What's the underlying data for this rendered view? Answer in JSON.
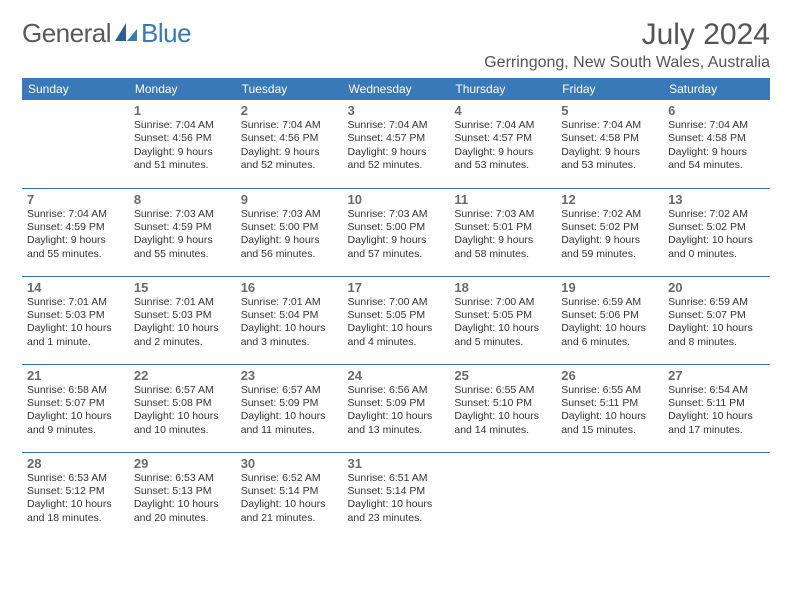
{
  "logo": {
    "general": "General",
    "blue": "Blue"
  },
  "colors": {
    "accent": "#3a79b7",
    "headerText": "#ffffff",
    "bodyText": "#333333",
    "dayNum": "#6a6a6a",
    "titleText": "#555555",
    "background": "#ffffff"
  },
  "title": "July 2024",
  "location": "Gerringong, New South Wales, Australia",
  "dayHeaders": [
    "Sunday",
    "Monday",
    "Tuesday",
    "Wednesday",
    "Thursday",
    "Friday",
    "Saturday"
  ],
  "weeks": [
    [
      null,
      {
        "d": "1",
        "sr": "Sunrise: 7:04 AM",
        "ss": "Sunset: 4:56 PM",
        "dl1": "Daylight: 9 hours",
        "dl2": "and 51 minutes."
      },
      {
        "d": "2",
        "sr": "Sunrise: 7:04 AM",
        "ss": "Sunset: 4:56 PM",
        "dl1": "Daylight: 9 hours",
        "dl2": "and 52 minutes."
      },
      {
        "d": "3",
        "sr": "Sunrise: 7:04 AM",
        "ss": "Sunset: 4:57 PM",
        "dl1": "Daylight: 9 hours",
        "dl2": "and 52 minutes."
      },
      {
        "d": "4",
        "sr": "Sunrise: 7:04 AM",
        "ss": "Sunset: 4:57 PM",
        "dl1": "Daylight: 9 hours",
        "dl2": "and 53 minutes."
      },
      {
        "d": "5",
        "sr": "Sunrise: 7:04 AM",
        "ss": "Sunset: 4:58 PM",
        "dl1": "Daylight: 9 hours",
        "dl2": "and 53 minutes."
      },
      {
        "d": "6",
        "sr": "Sunrise: 7:04 AM",
        "ss": "Sunset: 4:58 PM",
        "dl1": "Daylight: 9 hours",
        "dl2": "and 54 minutes."
      }
    ],
    [
      {
        "d": "7",
        "sr": "Sunrise: 7:04 AM",
        "ss": "Sunset: 4:59 PM",
        "dl1": "Daylight: 9 hours",
        "dl2": "and 55 minutes."
      },
      {
        "d": "8",
        "sr": "Sunrise: 7:03 AM",
        "ss": "Sunset: 4:59 PM",
        "dl1": "Daylight: 9 hours",
        "dl2": "and 55 minutes."
      },
      {
        "d": "9",
        "sr": "Sunrise: 7:03 AM",
        "ss": "Sunset: 5:00 PM",
        "dl1": "Daylight: 9 hours",
        "dl2": "and 56 minutes."
      },
      {
        "d": "10",
        "sr": "Sunrise: 7:03 AM",
        "ss": "Sunset: 5:00 PM",
        "dl1": "Daylight: 9 hours",
        "dl2": "and 57 minutes."
      },
      {
        "d": "11",
        "sr": "Sunrise: 7:03 AM",
        "ss": "Sunset: 5:01 PM",
        "dl1": "Daylight: 9 hours",
        "dl2": "and 58 minutes."
      },
      {
        "d": "12",
        "sr": "Sunrise: 7:02 AM",
        "ss": "Sunset: 5:02 PM",
        "dl1": "Daylight: 9 hours",
        "dl2": "and 59 minutes."
      },
      {
        "d": "13",
        "sr": "Sunrise: 7:02 AM",
        "ss": "Sunset: 5:02 PM",
        "dl1": "Daylight: 10 hours",
        "dl2": "and 0 minutes."
      }
    ],
    [
      {
        "d": "14",
        "sr": "Sunrise: 7:01 AM",
        "ss": "Sunset: 5:03 PM",
        "dl1": "Daylight: 10 hours",
        "dl2": "and 1 minute."
      },
      {
        "d": "15",
        "sr": "Sunrise: 7:01 AM",
        "ss": "Sunset: 5:03 PM",
        "dl1": "Daylight: 10 hours",
        "dl2": "and 2 minutes."
      },
      {
        "d": "16",
        "sr": "Sunrise: 7:01 AM",
        "ss": "Sunset: 5:04 PM",
        "dl1": "Daylight: 10 hours",
        "dl2": "and 3 minutes."
      },
      {
        "d": "17",
        "sr": "Sunrise: 7:00 AM",
        "ss": "Sunset: 5:05 PM",
        "dl1": "Daylight: 10 hours",
        "dl2": "and 4 minutes."
      },
      {
        "d": "18",
        "sr": "Sunrise: 7:00 AM",
        "ss": "Sunset: 5:05 PM",
        "dl1": "Daylight: 10 hours",
        "dl2": "and 5 minutes."
      },
      {
        "d": "19",
        "sr": "Sunrise: 6:59 AM",
        "ss": "Sunset: 5:06 PM",
        "dl1": "Daylight: 10 hours",
        "dl2": "and 6 minutes."
      },
      {
        "d": "20",
        "sr": "Sunrise: 6:59 AM",
        "ss": "Sunset: 5:07 PM",
        "dl1": "Daylight: 10 hours",
        "dl2": "and 8 minutes."
      }
    ],
    [
      {
        "d": "21",
        "sr": "Sunrise: 6:58 AM",
        "ss": "Sunset: 5:07 PM",
        "dl1": "Daylight: 10 hours",
        "dl2": "and 9 minutes."
      },
      {
        "d": "22",
        "sr": "Sunrise: 6:57 AM",
        "ss": "Sunset: 5:08 PM",
        "dl1": "Daylight: 10 hours",
        "dl2": "and 10 minutes."
      },
      {
        "d": "23",
        "sr": "Sunrise: 6:57 AM",
        "ss": "Sunset: 5:09 PM",
        "dl1": "Daylight: 10 hours",
        "dl2": "and 11 minutes."
      },
      {
        "d": "24",
        "sr": "Sunrise: 6:56 AM",
        "ss": "Sunset: 5:09 PM",
        "dl1": "Daylight: 10 hours",
        "dl2": "and 13 minutes."
      },
      {
        "d": "25",
        "sr": "Sunrise: 6:55 AM",
        "ss": "Sunset: 5:10 PM",
        "dl1": "Daylight: 10 hours",
        "dl2": "and 14 minutes."
      },
      {
        "d": "26",
        "sr": "Sunrise: 6:55 AM",
        "ss": "Sunset: 5:11 PM",
        "dl1": "Daylight: 10 hours",
        "dl2": "and 15 minutes."
      },
      {
        "d": "27",
        "sr": "Sunrise: 6:54 AM",
        "ss": "Sunset: 5:11 PM",
        "dl1": "Daylight: 10 hours",
        "dl2": "and 17 minutes."
      }
    ],
    [
      {
        "d": "28",
        "sr": "Sunrise: 6:53 AM",
        "ss": "Sunset: 5:12 PM",
        "dl1": "Daylight: 10 hours",
        "dl2": "and 18 minutes."
      },
      {
        "d": "29",
        "sr": "Sunrise: 6:53 AM",
        "ss": "Sunset: 5:13 PM",
        "dl1": "Daylight: 10 hours",
        "dl2": "and 20 minutes."
      },
      {
        "d": "30",
        "sr": "Sunrise: 6:52 AM",
        "ss": "Sunset: 5:14 PM",
        "dl1": "Daylight: 10 hours",
        "dl2": "and 21 minutes."
      },
      {
        "d": "31",
        "sr": "Sunrise: 6:51 AM",
        "ss": "Sunset: 5:14 PM",
        "dl1": "Daylight: 10 hours",
        "dl2": "and 23 minutes."
      },
      null,
      null,
      null
    ]
  ]
}
